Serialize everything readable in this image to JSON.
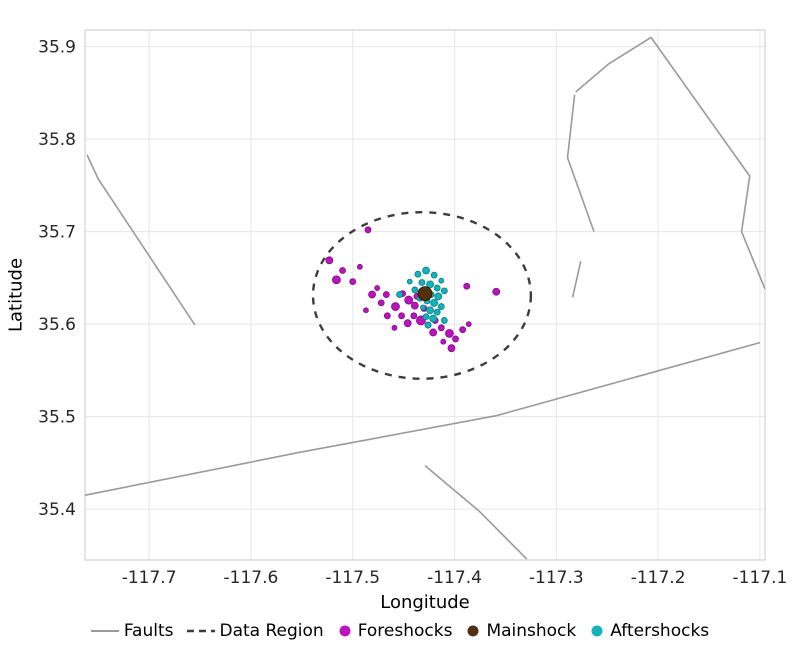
{
  "chart_data": {
    "type": "scatter",
    "title": "",
    "xlabel": "Longitude",
    "ylabel": "Latitude",
    "xlim": [
      -117.763,
      -117.095
    ],
    "ylim": [
      35.345,
      35.918
    ],
    "xticks": [
      -117.7,
      -117.6,
      -117.5,
      -117.4,
      -117.3,
      -117.2,
      -117.1
    ],
    "yticks": [
      35.4,
      35.5,
      35.6,
      35.7,
      35.8,
      35.9
    ],
    "grid": true,
    "legend_position": "bottom",
    "grid_color": "#e6e6e6",
    "border_color": "#c9c9c9",
    "tick_color": "#262626",
    "faults": {
      "color": "#9a9a9a",
      "width": 1.6,
      "lines": [
        [
          [
            -117.763,
            35.415
          ],
          [
            -117.554,
            35.461
          ],
          [
            -117.359,
            35.501
          ],
          [
            -117.1,
            35.58
          ]
        ],
        [
          [
            -117.429,
            35.447
          ],
          [
            -117.376,
            35.398
          ],
          [
            -117.329,
            35.346
          ]
        ],
        [
          [
            -117.761,
            35.783
          ],
          [
            -117.75,
            35.757
          ],
          [
            -117.655,
            35.599
          ]
        ],
        [
          [
            -117.281,
            35.851
          ],
          [
            -117.249,
            35.881
          ],
          [
            -117.207,
            35.91
          ],
          [
            -117.11,
            35.76
          ],
          [
            -117.118,
            35.7
          ],
          [
            -117.095,
            35.638
          ]
        ],
        [
          [
            -117.282,
            35.848
          ],
          [
            -117.289,
            35.78
          ],
          [
            -117.263,
            35.7
          ]
        ],
        [
          [
            -117.276,
            35.668
          ],
          [
            -117.284,
            35.629
          ]
        ]
      ]
    },
    "data_region": {
      "center": [
        -117.432,
        35.631
      ],
      "rx": 0.107,
      "ry": 0.09,
      "color": "#3d3d3d",
      "dash": "7 7",
      "width": 2.4
    },
    "series": [
      {
        "name": "Foreshocks",
        "marker": "circle",
        "fill": "#bb14bf",
        "stroke": "#7e0d86",
        "points": [
          [
            -117.485,
            35.702,
            3
          ],
          [
            -117.523,
            35.669,
            3.5
          ],
          [
            -117.51,
            35.658,
            3
          ],
          [
            -117.493,
            35.662,
            2.5
          ],
          [
            -117.516,
            35.648,
            4
          ],
          [
            -117.5,
            35.646,
            3
          ],
          [
            -117.481,
            35.632,
            3.5
          ],
          [
            -117.472,
            35.623,
            3
          ],
          [
            -117.487,
            35.615,
            2.5
          ],
          [
            -117.466,
            35.609,
            3
          ],
          [
            -117.458,
            35.619,
            4
          ],
          [
            -117.452,
            35.609,
            3
          ],
          [
            -117.446,
            35.601,
            3.5
          ],
          [
            -117.459,
            35.596,
            2.5
          ],
          [
            -117.44,
            35.609,
            3
          ],
          [
            -117.433,
            35.604,
            4.5
          ],
          [
            -117.426,
            35.599,
            3
          ],
          [
            -117.419,
            35.604,
            3
          ],
          [
            -117.421,
            35.591,
            3.5
          ],
          [
            -117.413,
            35.596,
            3
          ],
          [
            -117.405,
            35.59,
            4
          ],
          [
            -117.399,
            35.584,
            3
          ],
          [
            -117.411,
            35.581,
            2.5
          ],
          [
            -117.403,
            35.574,
            3.5
          ],
          [
            -117.392,
            35.594,
            3
          ],
          [
            -117.386,
            35.6,
            2.5
          ],
          [
            -117.388,
            35.641,
            3
          ],
          [
            -117.359,
            35.635,
            3.5
          ],
          [
            -117.437,
            35.63,
            3
          ],
          [
            -117.445,
            35.626,
            4
          ],
          [
            -117.451,
            35.633,
            3
          ],
          [
            -117.439,
            35.62,
            3.5
          ],
          [
            -117.43,
            35.617,
            3
          ],
          [
            -117.476,
            35.639,
            2.5
          ],
          [
            -117.467,
            35.632,
            3
          ]
        ]
      },
      {
        "name": "Aftershocks",
        "marker": "circle",
        "fill": "#12b3bb",
        "stroke": "#0c7e84",
        "points": [
          [
            -117.436,
            35.654,
            3
          ],
          [
            -117.428,
            35.658,
            3.5
          ],
          [
            -117.42,
            35.653,
            3
          ],
          [
            -117.413,
            35.647,
            2.5
          ],
          [
            -117.432,
            35.645,
            3
          ],
          [
            -117.424,
            35.643,
            3.5
          ],
          [
            -117.417,
            35.639,
            3
          ],
          [
            -117.439,
            35.637,
            3
          ],
          [
            -117.43,
            35.635,
            4
          ],
          [
            -117.423,
            35.632,
            3
          ],
          [
            -117.416,
            35.63,
            3.5
          ],
          [
            -117.434,
            35.628,
            3
          ],
          [
            -117.427,
            35.625,
            3
          ],
          [
            -117.42,
            35.623,
            3.5
          ],
          [
            -117.413,
            35.619,
            3
          ],
          [
            -117.431,
            35.618,
            2.5
          ],
          [
            -117.424,
            35.615,
            3.5
          ],
          [
            -117.417,
            35.613,
            3
          ],
          [
            -117.428,
            35.608,
            3
          ],
          [
            -117.421,
            35.606,
            3.5
          ],
          [
            -117.41,
            35.604,
            3
          ],
          [
            -117.426,
            35.599,
            3
          ],
          [
            -117.444,
            35.646,
            2.5
          ],
          [
            -117.454,
            35.632,
            3
          ],
          [
            -117.41,
            35.636,
            3
          ]
        ]
      },
      {
        "name": "Mainshock",
        "marker": "circle",
        "fill": "#54300f",
        "stroke": "#241203",
        "points": [
          [
            -117.429,
            35.633,
            7
          ]
        ]
      }
    ],
    "legend": [
      {
        "label": "Faults",
        "swatch": "line",
        "color": "#9a9a9a"
      },
      {
        "label": "Data Region",
        "swatch": "dashed-line",
        "color": "#3d3d3d"
      },
      {
        "label": "Foreshocks",
        "swatch": "dot",
        "color": "#bb14bf"
      },
      {
        "label": "Mainshock",
        "swatch": "dot",
        "color": "#54300f"
      },
      {
        "label": "Aftershocks",
        "swatch": "dot",
        "color": "#12b3bb"
      }
    ]
  }
}
